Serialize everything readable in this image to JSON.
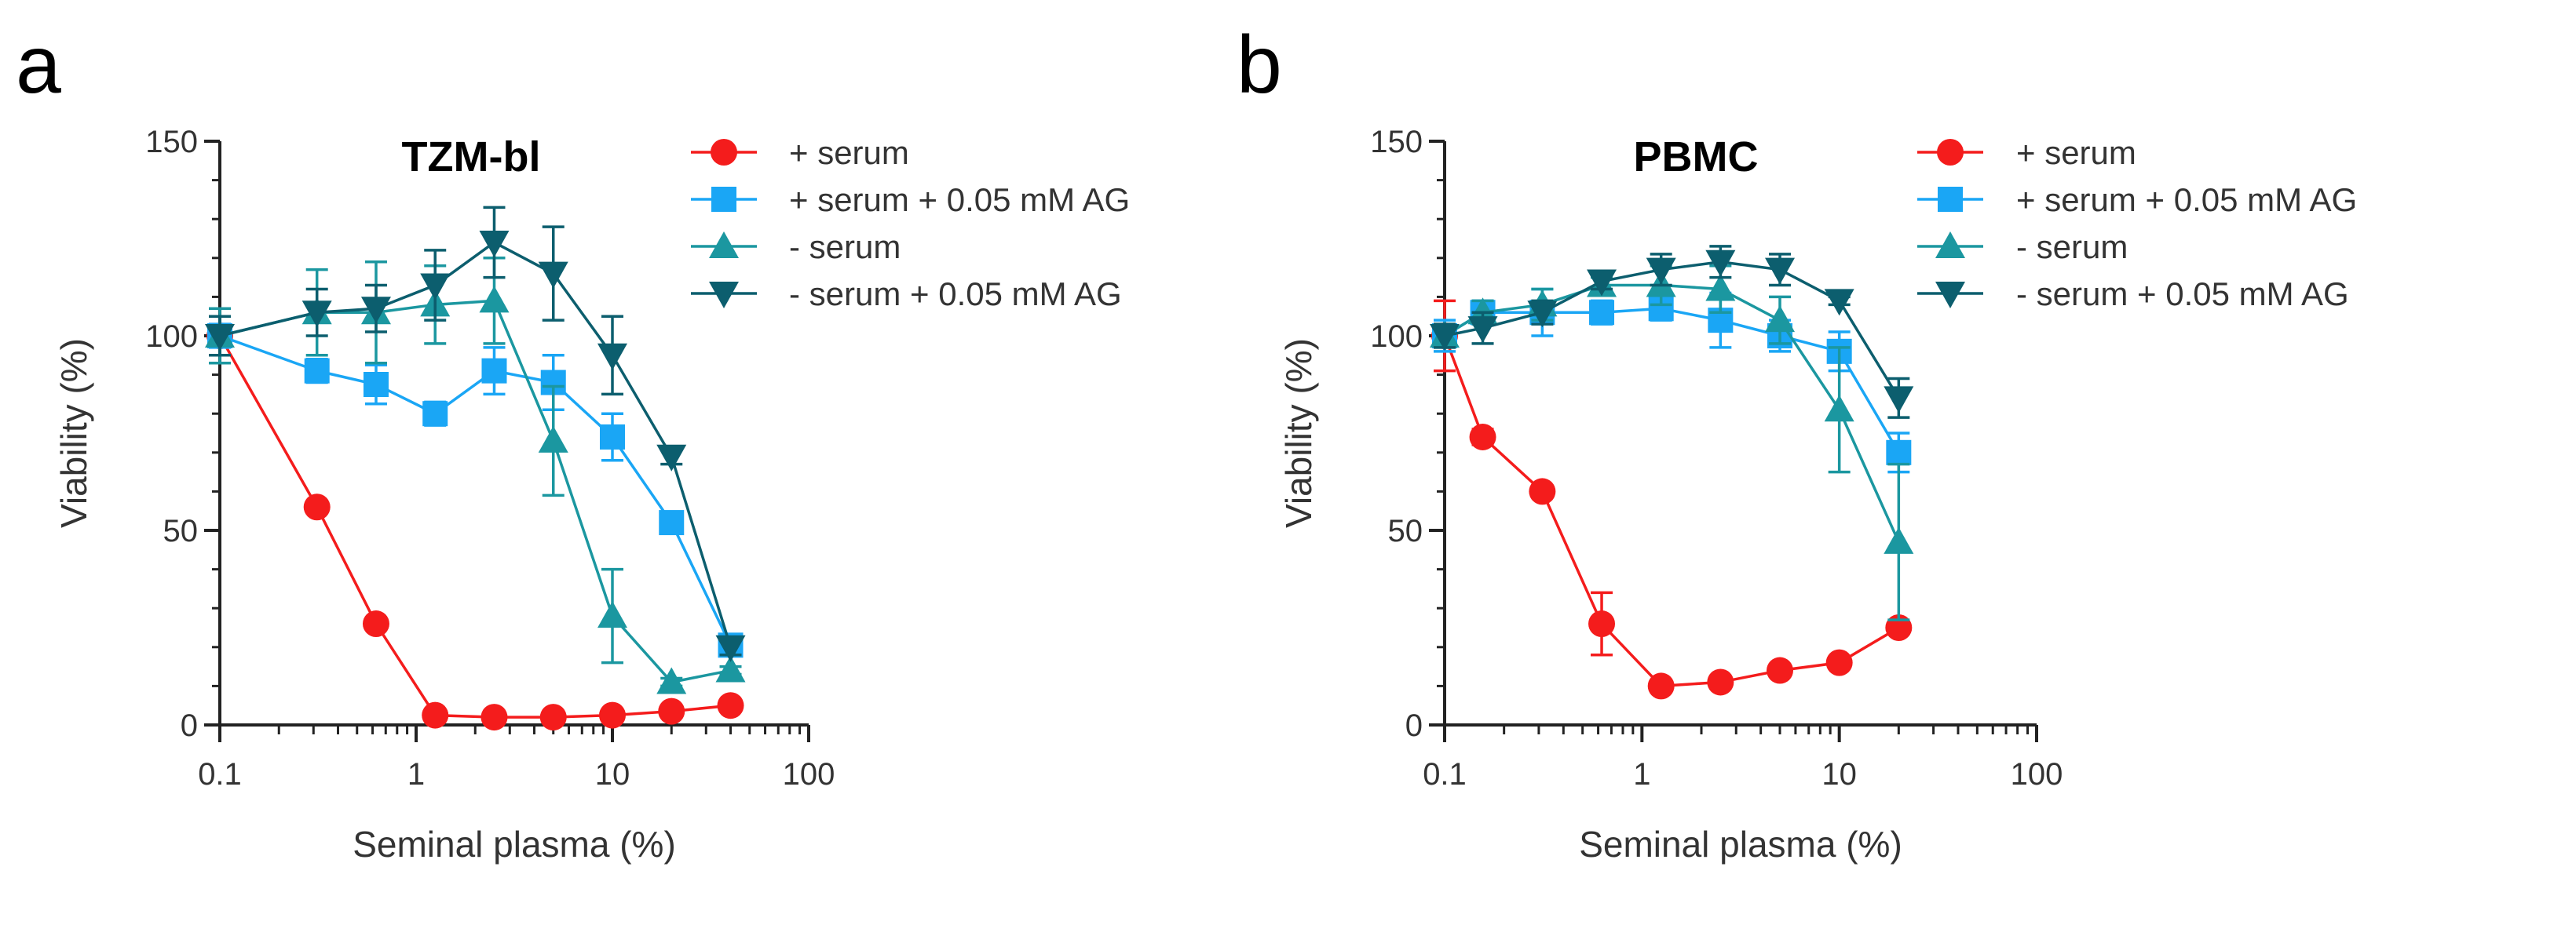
{
  "series_colors": {
    "plus_serum": "#f41c1c",
    "plus_serum_ag": "#1aa6f5",
    "minus_serum": "#1b97a0",
    "minus_serum_ag": "#0c5e6e"
  },
  "chart_data": [
    {
      "panel_label": "a",
      "type": "line",
      "title": "TZM-bl",
      "xlabel": "Seminal plasma (%)",
      "ylabel": "Viability (%)",
      "xscale": "log",
      "xlim": [
        0.1,
        100
      ],
      "ylim": [
        0,
        150
      ],
      "xticks": [
        "0.1",
        "1",
        "10",
        "100"
      ],
      "yticks": [
        "0",
        "50",
        "100",
        "150"
      ],
      "legend_position": "top-right-outside",
      "series": [
        {
          "key": "plus_serum",
          "name": "+ serum",
          "marker": "circle",
          "x": [
            0.1,
            0.3125,
            0.625,
            1.25,
            2.5,
            5,
            10,
            20,
            40
          ],
          "values": [
            100,
            56,
            26,
            2.5,
            2,
            2,
            2.5,
            3.5,
            5
          ],
          "err": [
            2,
            1,
            1,
            1,
            1,
            1,
            1,
            1,
            1
          ]
        },
        {
          "key": "plus_serum_ag",
          "name": "+ serum + 0.05 mM AG",
          "marker": "square",
          "x": [
            0.1,
            0.3125,
            0.625,
            1.25,
            2.5,
            5,
            10,
            20,
            40
          ],
          "values": [
            100,
            91,
            87.5,
            80,
            91,
            88,
            74,
            52,
            20.5
          ],
          "err": [
            3,
            3,
            5,
            3,
            6,
            7,
            6,
            2,
            2
          ]
        },
        {
          "key": "minus_serum",
          "name": "- serum",
          "marker": "triangle-up",
          "x": [
            0.1,
            0.3125,
            0.625,
            1.25,
            2.5,
            5,
            10,
            20,
            40
          ],
          "values": [
            100,
            106,
            106,
            108,
            109,
            73,
            28,
            11,
            14
          ],
          "err": [
            7,
            11,
            13,
            10,
            11,
            14,
            12,
            1,
            1
          ]
        },
        {
          "key": "minus_serum_ag",
          "name": "- serum + 0.05 mM AG",
          "marker": "triangle-down",
          "x": [
            0.1,
            0.3125,
            0.625,
            1.25,
            2.5,
            5,
            10,
            20,
            40
          ],
          "values": [
            100,
            106,
            107,
            113,
            124,
            116,
            95,
            69,
            20
          ],
          "err": [
            5,
            6,
            6,
            9,
            9,
            12,
            10,
            2,
            2
          ]
        }
      ]
    },
    {
      "panel_label": "b",
      "type": "line",
      "title": "PBMC",
      "xlabel": "Seminal plasma (%)",
      "ylabel": "Viability (%)",
      "xscale": "log",
      "xlim": [
        0.1,
        100
      ],
      "ylim": [
        0,
        150
      ],
      "xticks": [
        "0.1",
        "1",
        "10",
        "100"
      ],
      "yticks": [
        "0",
        "50",
        "100",
        "150"
      ],
      "legend_position": "top-right-outside",
      "series": [
        {
          "key": "plus_serum",
          "name": "+ serum",
          "marker": "circle",
          "x": [
            0.1,
            0.156,
            0.3125,
            0.625,
            1.25,
            2.5,
            5,
            10,
            20
          ],
          "values": [
            100,
            74,
            60,
            26,
            10,
            11,
            14,
            16,
            25
          ],
          "err": [
            9,
            2,
            1,
            8,
            1,
            1,
            1,
            1,
            1
          ]
        },
        {
          "key": "plus_serum_ag",
          "name": "+ serum + 0.05 mM AG",
          "marker": "square",
          "x": [
            0.1,
            0.156,
            0.3125,
            0.625,
            1.25,
            2.5,
            5,
            10,
            20
          ],
          "values": [
            100,
            106,
            106,
            106,
            107,
            104,
            100,
            96,
            70
          ],
          "err": [
            4,
            3,
            6,
            3,
            3,
            7,
            4,
            5,
            5
          ]
        },
        {
          "key": "minus_serum",
          "name": "- serum",
          "marker": "triangle-up",
          "x": [
            0.1,
            0.156,
            0.3125,
            0.625,
            1.25,
            2.5,
            5,
            10,
            20
          ],
          "values": [
            100,
            106,
            108,
            113,
            113,
            112,
            104,
            81,
            47
          ],
          "err": [
            3,
            3,
            4,
            2,
            5,
            6,
            6,
            16,
            20
          ]
        },
        {
          "key": "minus_serum_ag",
          "name": "- serum + 0.05 mM AG",
          "marker": "triangle-down",
          "x": [
            0.1,
            0.156,
            0.3125,
            0.625,
            1.25,
            2.5,
            5,
            10,
            20
          ],
          "values": [
            100,
            102,
            106,
            114,
            117,
            119,
            117,
            109,
            84
          ],
          "err": [
            3,
            4,
            3,
            2,
            4,
            4,
            4,
            1,
            5
          ]
        }
      ]
    }
  ]
}
